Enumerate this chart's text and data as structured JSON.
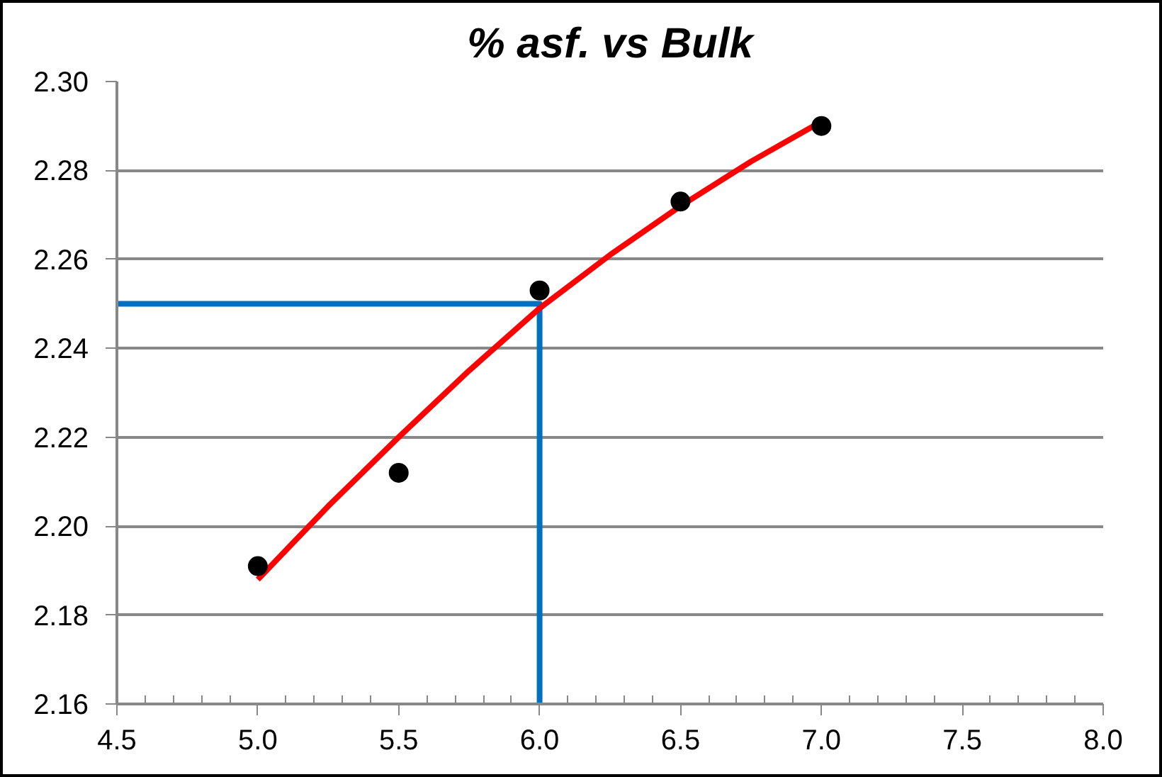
{
  "chart_data": {
    "type": "scatter",
    "title": "% asf. vs Bulk",
    "xlim": [
      4.5,
      8.0
    ],
    "xticks": [
      4.5,
      {
        "value": 5,
        "label": "5.0"
      },
      5.5,
      {
        "value": 6,
        "label": "6.0"
      },
      6.5,
      {
        "value": 7,
        "label": "7.0"
      },
      7.5,
      {
        "value": 8,
        "label": "8.0"
      }
    ],
    "ylim": [
      2.16,
      2.3
    ],
    "yticks": [
      2.16,
      2.18,
      {
        "value": 2.2,
        "label": "2.20"
      },
      2.22,
      2.24,
      2.26,
      2.28,
      {
        "value": 2.3,
        "label": "2.30"
      }
    ],
    "grid": "y",
    "series": [
      {
        "type": "line",
        "color": "#0070c0",
        "x": [
          4.5,
          6.0,
          6.0
        ],
        "values": [
          2.25,
          2.25,
          2.16
        ],
        "marker": "none",
        "line_style": "solid"
      },
      {
        "type": "line",
        "color": "#ff0000",
        "x": [
          5.0,
          5.25,
          5.5,
          5.75,
          6.0,
          6.25,
          6.5,
          6.75,
          7.0
        ],
        "values": [
          2.188,
          2.2045,
          2.22,
          2.235,
          2.249,
          2.261,
          2.272,
          2.282,
          2.291
        ],
        "marker": "none",
        "line_style": "solid"
      },
      {
        "color": "#000000",
        "x": [
          5.0,
          5.5,
          6.0,
          6.5,
          7.0
        ],
        "values": [
          2.191,
          2.212,
          2.253,
          2.273,
          2.29
        ],
        "marker": "circle"
      }
    ]
  }
}
